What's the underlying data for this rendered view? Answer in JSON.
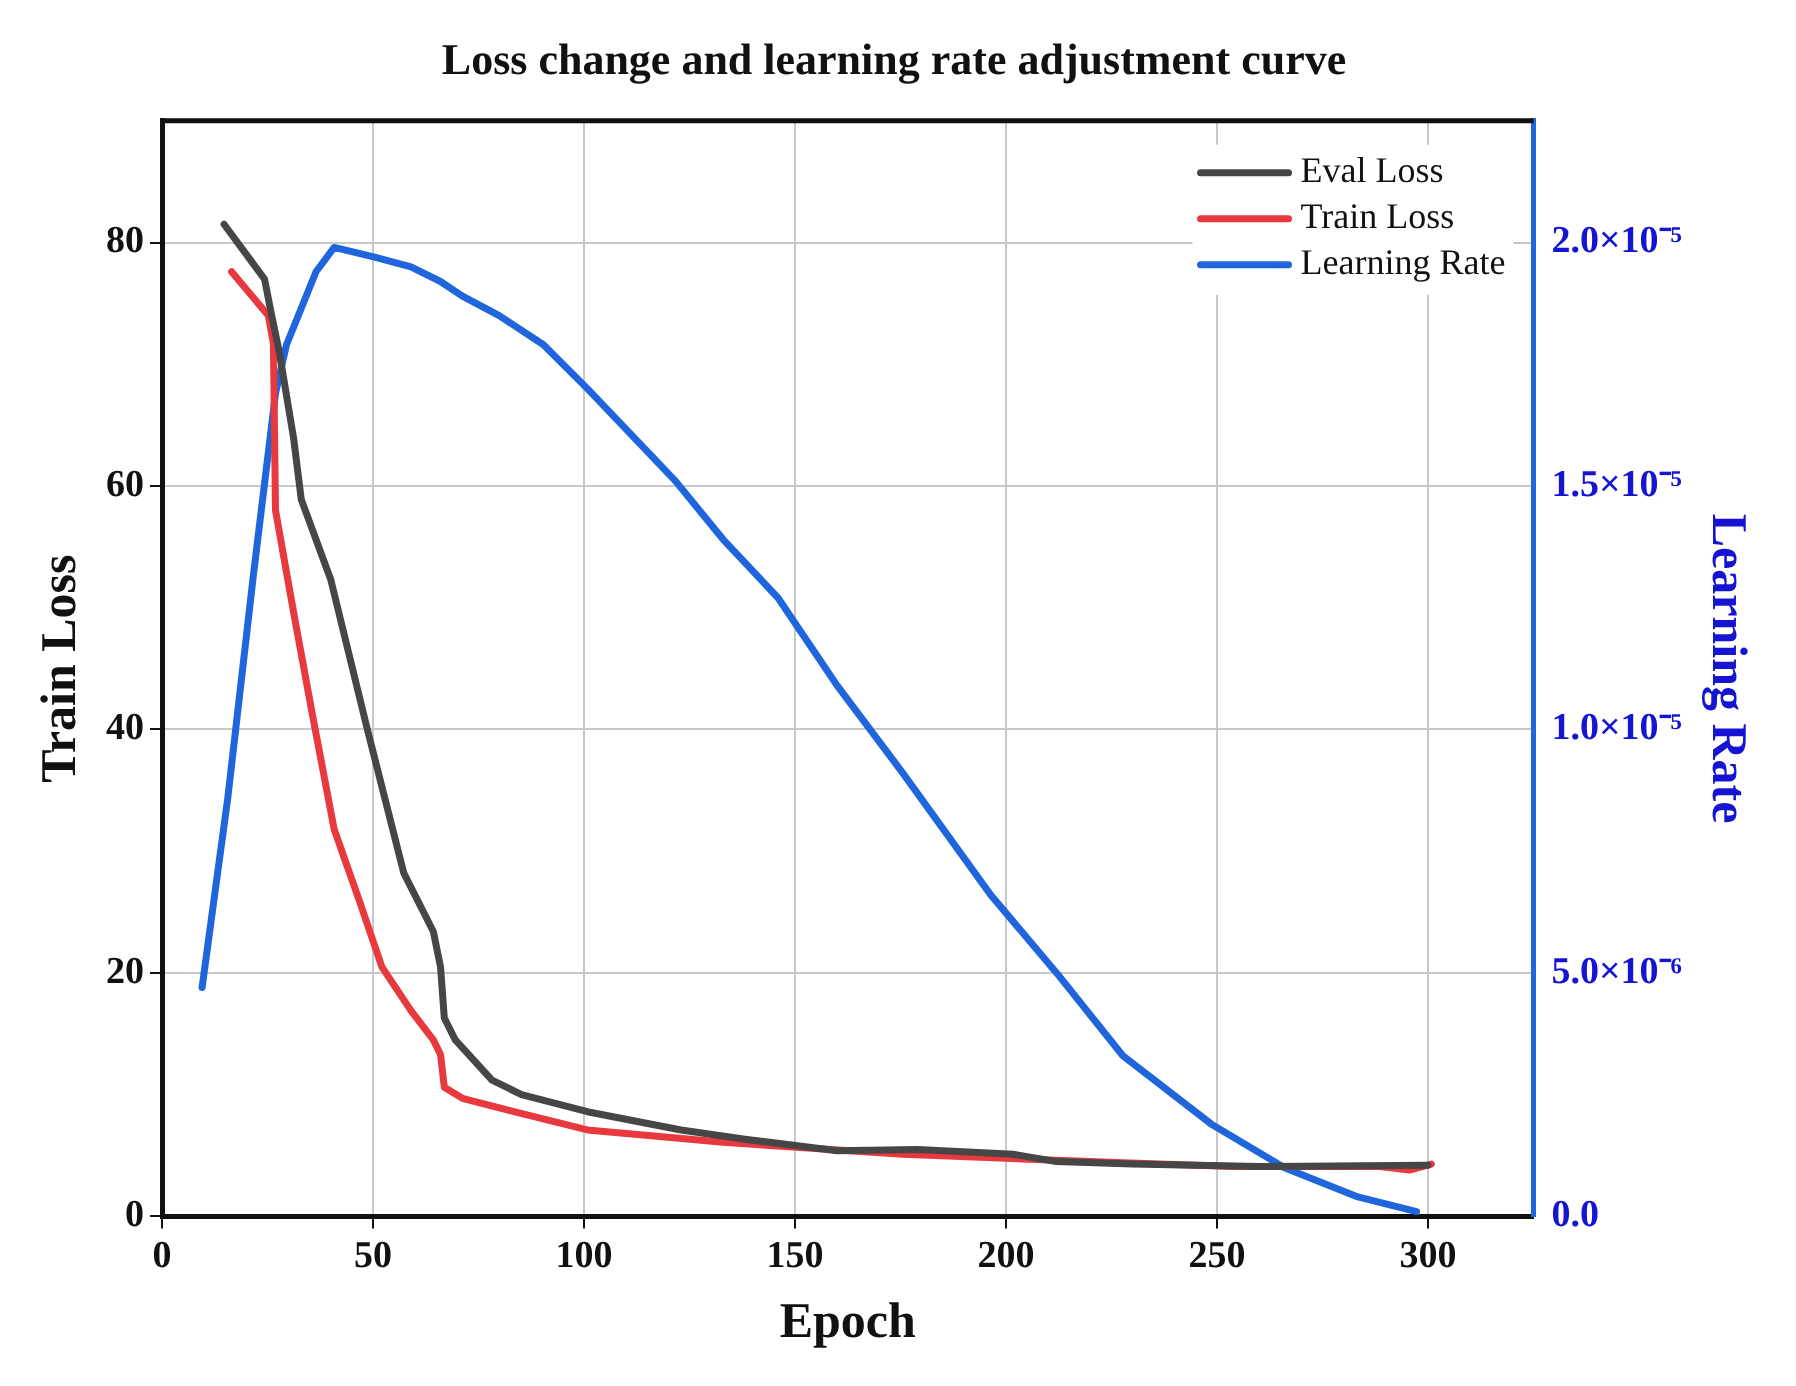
{
  "chart_data": {
    "type": "line",
    "title": "Loss change and learning rate adjustment curve",
    "xlabel": "Epoch",
    "ylabel": "Train Loss",
    "y2label": "Learning Rate",
    "xlim": [
      0,
      325
    ],
    "xticks": [
      0,
      50,
      100,
      150,
      200,
      250,
      300
    ],
    "ylim": [
      0,
      90
    ],
    "yticks": [
      0,
      20,
      40,
      60,
      80
    ],
    "y2lim": [
      0,
      2.25e-05
    ],
    "y2ticks": [
      {
        "value": 0,
        "label": "0.0"
      },
      {
        "value": 5e-06,
        "label": "5.0×10⁻⁶"
      },
      {
        "value": 1e-05,
        "label": "1.0×10⁻⁵"
      },
      {
        "value": 1.5e-05,
        "label": "1.5×10⁻⁵"
      },
      {
        "value": 2e-05,
        "label": "2.0×10⁻⁵"
      }
    ],
    "grid": true,
    "legend": "top right",
    "marker": "none",
    "line_style": "solid",
    "series": [
      {
        "name": "Eval Loss",
        "color": "#464646",
        "x": [
          14.7,
          24.3,
          26,
          27.8,
          31.2,
          33,
          40,
          48.6,
          57.3,
          64.3,
          66,
          66.9,
          69.5,
          78.2,
          85.2,
          100.8,
          123,
          139,
          160,
          179,
          201.7,
          212,
          230,
          260,
          300
        ],
        "values": [
          81.5,
          77,
          74,
          71,
          63.9,
          58.9,
          52.3,
          40.1,
          28.2,
          23.4,
          20.5,
          16.3,
          14.5,
          11.2,
          10,
          8.6,
          7.1,
          6.3,
          5.4,
          5.5,
          5.1,
          4.5,
          4.3,
          4.1,
          4.2
        ]
      },
      {
        "name": "Train Loss",
        "color": "#e8393e",
        "x": [
          16.5,
          25.2,
          26.4,
          26.9,
          31.2,
          35.6,
          40.8,
          46.9,
          52.1,
          59,
          64.3,
          66,
          66.9,
          71.2,
          83.4,
          100.8,
          133,
          140.8,
          175.6,
          227.7,
          253.8,
          288.6,
          295.6,
          300.8
        ],
        "values": [
          77.6,
          74,
          71.7,
          58,
          49.6,
          41.3,
          31.8,
          25.8,
          20.5,
          16.9,
          14.5,
          13.3,
          10.6,
          9.7,
          8.6,
          7.1,
          6.1,
          5.9,
          5.1,
          4.4,
          4.1,
          4.1,
          3.8,
          4.3
        ]
      },
      {
        "name": "Learning Rate",
        "color": "#1f66dc",
        "axis": "y2",
        "x": [
          9.5,
          15.6,
          21.7,
          26.9,
          29.5,
          36.5,
          40.8,
          50.4,
          59,
          66,
          71.2,
          79.9,
          90.4,
          100.8,
          121.7,
          133,
          146,
          160,
          175.6,
          196.4,
          212,
          227.7,
          248.6,
          266,
          283.4,
          297.3
        ],
        "values": [
          4.7e-06,
          8.6e-06,
          1.32e-05,
          1.69e-05,
          1.79e-05,
          1.94e-05,
          1.99e-05,
          1.97e-05,
          1.95e-05,
          1.92e-05,
          1.89e-05,
          1.85e-05,
          1.79e-05,
          1.7e-05,
          1.51e-05,
          1.39e-05,
          1.27e-05,
          1.09e-05,
          9.1e-06,
          6.6e-06,
          5e-06,
          3.3e-06,
          1.9e-06,
          1e-06,
          4e-07,
          1e-07
        ]
      }
    ]
  }
}
